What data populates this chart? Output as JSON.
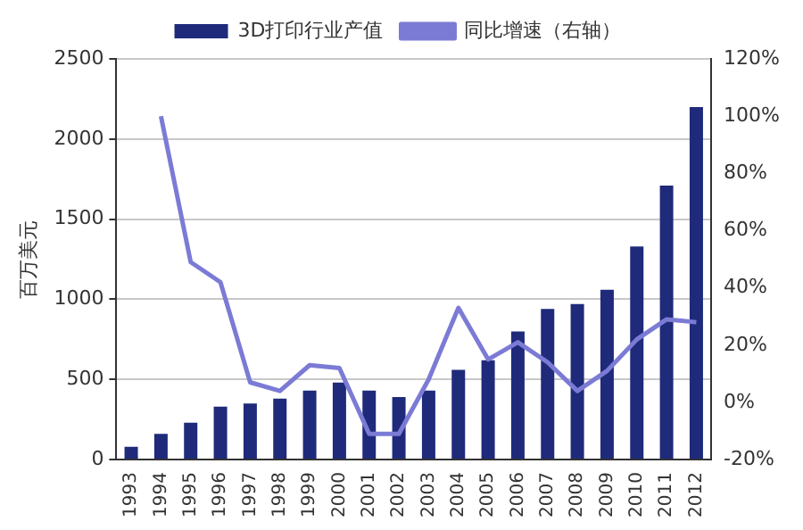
{
  "chart_data": {
    "type": "bar",
    "ylabel": "百万美元",
    "categories": [
      "1993",
      "1994",
      "1995",
      "1996",
      "1997",
      "1998",
      "1999",
      "2000",
      "2001",
      "2002",
      "2003",
      "2004",
      "2005",
      "2006",
      "2007",
      "2008",
      "2009",
      "2010",
      "2011",
      "2012"
    ],
    "series": [
      {
        "name": "3D打印行业产值",
        "type": "bar",
        "color": "#1f2a7a",
        "values": [
          80,
          160,
          230,
          330,
          350,
          380,
          430,
          480,
          430,
          390,
          430,
          560,
          620,
          800,
          940,
          970,
          1060,
          1330,
          1710,
          2200
        ]
      },
      {
        "name": "同比增速（右轴）",
        "type": "line",
        "axis": "y2",
        "color": "#7b7bd6",
        "values": [
          null,
          100,
          49,
          42,
          7,
          4,
          13,
          12,
          -11,
          -11,
          8,
          33,
          15,
          21,
          14,
          4,
          11,
          22,
          29,
          28
        ]
      }
    ],
    "ylim": [
      0,
      2500
    ],
    "yticks": [
      0,
      500,
      1000,
      1500,
      2000,
      2500
    ],
    "y2lim": [
      -20,
      120
    ],
    "y2ticks": [
      {
        "value": -20,
        "label": "-20%"
      },
      {
        "value": 0,
        "label": "0%"
      },
      {
        "value": 20,
        "label": "20%"
      },
      {
        "value": 40,
        "label": "40%"
      },
      {
        "value": 60,
        "label": "60%"
      },
      {
        "value": 80,
        "label": "80%"
      },
      {
        "value": 100,
        "label": "100%"
      },
      {
        "value": 120,
        "label": "120%"
      }
    ],
    "grid": "y",
    "legend": "top",
    "marker": "none",
    "line_style": "solid"
  }
}
